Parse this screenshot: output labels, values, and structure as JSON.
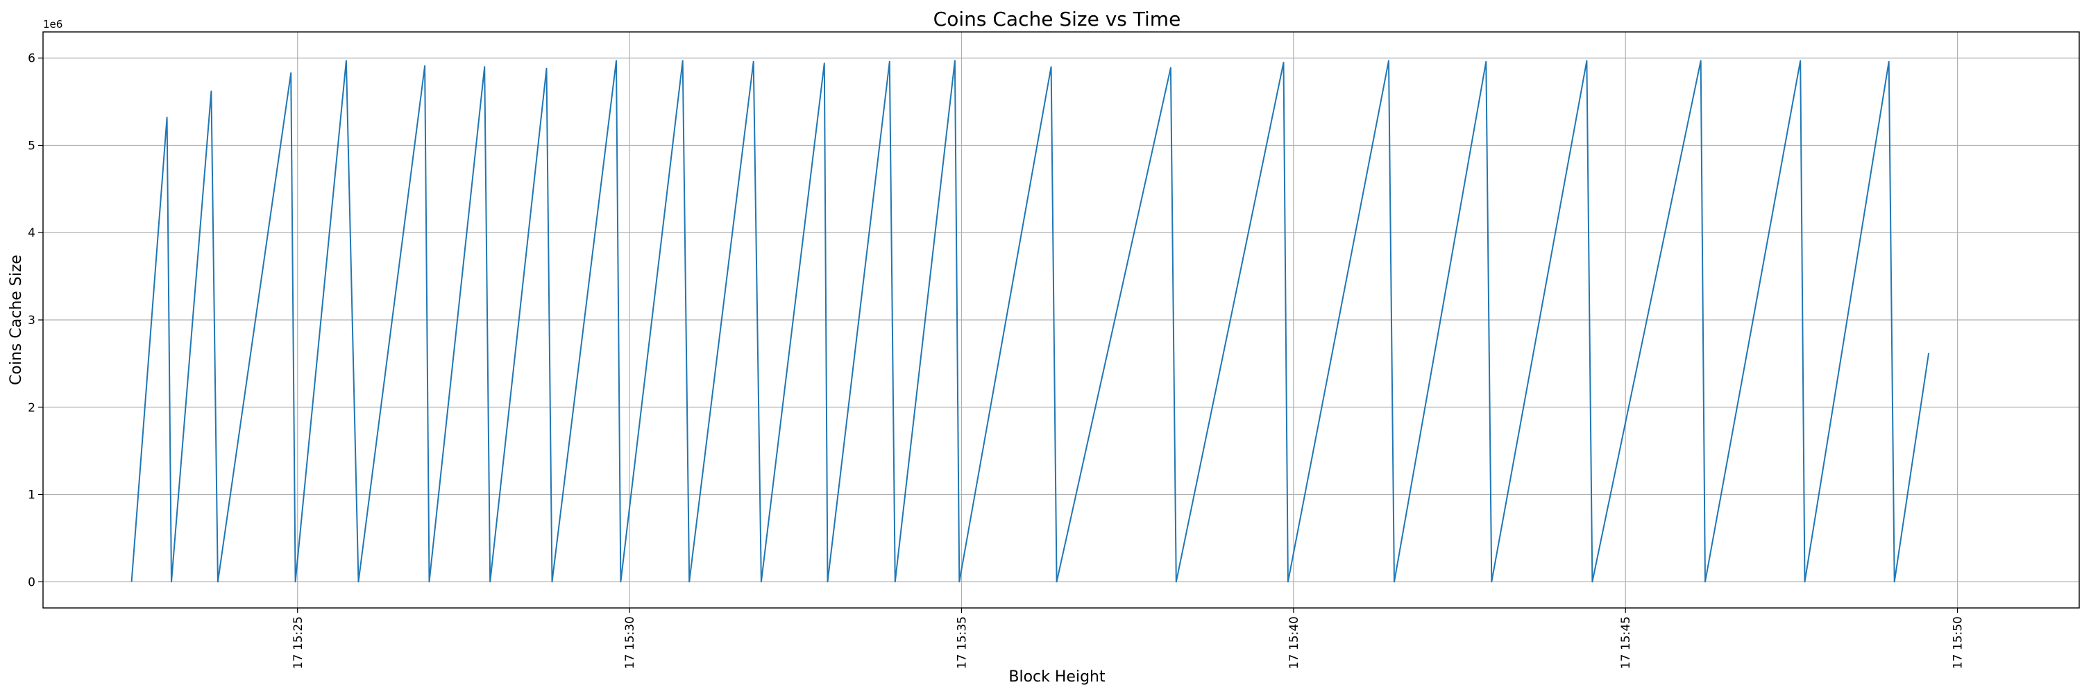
{
  "chart_data": {
    "type": "line",
    "title": "Coins Cache Size vs Time",
    "xlabel": "Block Height",
    "ylabel": "Coins Cache Size",
    "y_offset_label": "1e6",
    "y_scale": 1000000,
    "grid": true,
    "legend": "none",
    "color": "#1f77b4",
    "xlim": [
      "15:21:10",
      "15:51:50"
    ],
    "ylim": [
      -300000,
      6300000
    ],
    "x_ticks": [
      {
        "t": "15:25:00",
        "label": "17 15:25"
      },
      {
        "t": "15:30:00",
        "label": "17 15:30"
      },
      {
        "t": "15:35:00",
        "label": "17 15:35"
      },
      {
        "t": "15:40:00",
        "label": "17 15:40"
      },
      {
        "t": "15:45:00",
        "label": "17 15:45"
      },
      {
        "t": "15:50:00",
        "label": "17 15:50"
      }
    ],
    "y_ticks": [
      {
        "v": 0,
        "label": "0"
      },
      {
        "v": 1000000,
        "label": "1"
      },
      {
        "v": 2000000,
        "label": "2"
      },
      {
        "v": 3000000,
        "label": "3"
      },
      {
        "v": 4000000,
        "label": "4"
      },
      {
        "v": 5000000,
        "label": "5"
      },
      {
        "v": 6000000,
        "label": "6"
      }
    ],
    "series": [
      {
        "points": [
          [
            "15:22:30",
            0
          ],
          [
            "15:23:02",
            5320000
          ],
          [
            "15:23:06",
            0
          ],
          [
            "15:23:42",
            5620000
          ],
          [
            "15:23:48",
            0
          ],
          [
            "15:24:54",
            5830000
          ],
          [
            "15:24:58",
            0
          ],
          [
            "15:25:44",
            5970000
          ],
          [
            "15:25:55",
            0
          ],
          [
            "15:26:55",
            5910000
          ],
          [
            "15:26:59",
            0
          ],
          [
            "15:27:49",
            5900000
          ],
          [
            "15:27:54",
            0
          ],
          [
            "15:28:45",
            5880000
          ],
          [
            "15:28:50",
            0
          ],
          [
            "15:29:48",
            5970000
          ],
          [
            "15:29:52",
            0
          ],
          [
            "15:30:48",
            5970000
          ],
          [
            "15:30:54",
            0
          ],
          [
            "15:31:52",
            5960000
          ],
          [
            "15:31:59",
            0
          ],
          [
            "15:32:56",
            5940000
          ],
          [
            "15:32:59",
            0
          ],
          [
            "15:33:55",
            5960000
          ],
          [
            "15:34:00",
            0
          ],
          [
            "15:34:54",
            5970000
          ],
          [
            "15:34:58",
            0
          ],
          [
            "15:36:21",
            5900000
          ],
          [
            "15:36:26",
            0
          ],
          [
            "15:38:09",
            5890000
          ],
          [
            "15:38:14",
            0
          ],
          [
            "15:39:51",
            5950000
          ],
          [
            "15:39:55",
            0
          ],
          [
            "15:41:26",
            5970000
          ],
          [
            "15:41:31",
            0
          ],
          [
            "15:42:54",
            5960000
          ],
          [
            "15:42:59",
            0
          ],
          [
            "15:44:25",
            5970000
          ],
          [
            "15:44:30",
            0
          ],
          [
            "15:46:08",
            5970000
          ],
          [
            "15:46:12",
            0
          ],
          [
            "15:47:38",
            5970000
          ],
          [
            "15:47:42",
            0
          ],
          [
            "15:48:58",
            5960000
          ],
          [
            "15:49:03",
            0
          ],
          [
            "15:49:34",
            2620000
          ]
        ]
      }
    ]
  }
}
